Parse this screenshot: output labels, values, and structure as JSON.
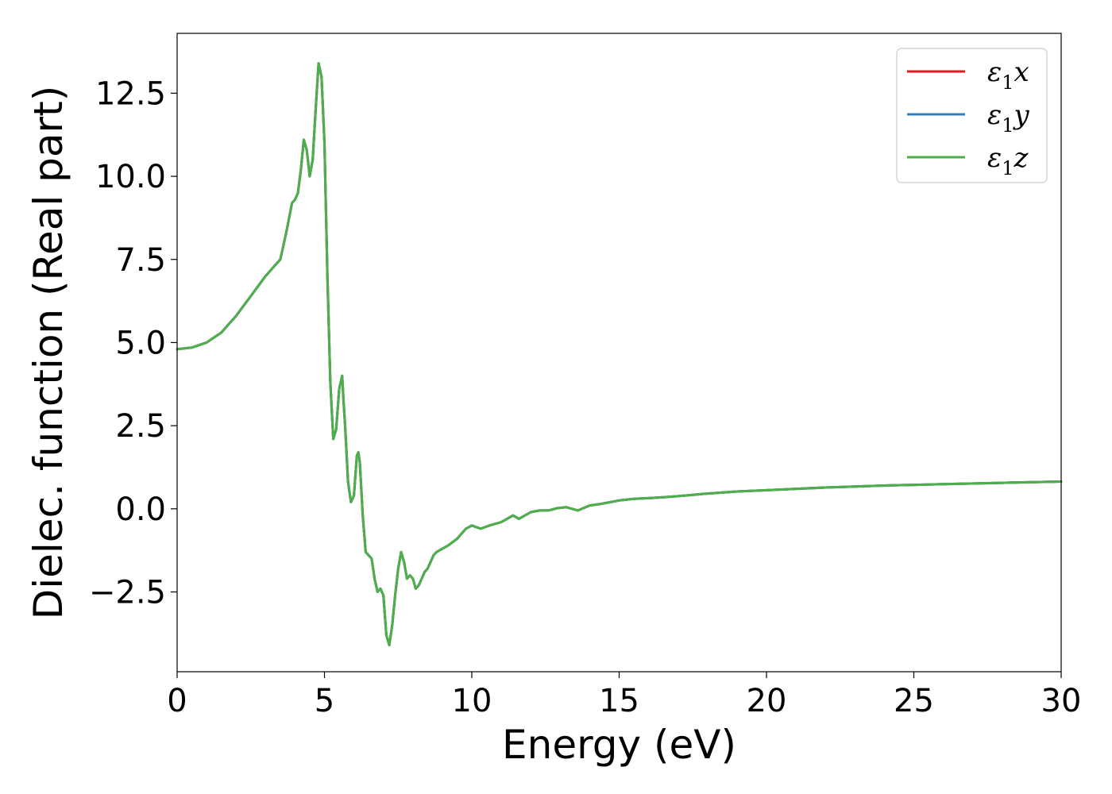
{
  "chart_data": {
    "type": "line",
    "xlabel": "Energy (eV)",
    "ylabel": "Dielec. function (Real part)",
    "xlim": [
      0,
      30
    ],
    "ylim": [
      -4.9,
      14.3
    ],
    "x_ticks": [
      0,
      5,
      10,
      15,
      20,
      25,
      30
    ],
    "x_tick_labels": [
      "0",
      "5",
      "10",
      "15",
      "20",
      "25",
      "30"
    ],
    "y_ticks": [
      -2.5,
      0.0,
      2.5,
      5.0,
      7.5,
      10.0,
      12.5
    ],
    "y_tick_labels": [
      "−2.5",
      "0.0",
      "2.5",
      "5.0",
      "7.5",
      "10.0",
      "12.5"
    ],
    "grid": false,
    "legend_position": "top-right",
    "series": [
      {
        "name": "ε₁x",
        "legend_symbol": "ε",
        "legend_subscript": "1",
        "legend_suffix": "x",
        "color": "#e41a1c",
        "x": [
          0,
          0.5,
          1,
          1.5,
          2,
          2.5,
          3,
          3.3,
          3.5,
          3.7,
          3.9,
          4.0,
          4.1,
          4.2,
          4.3,
          4.4,
          4.5,
          4.6,
          4.7,
          4.8,
          4.9,
          5.0,
          5.1,
          5.2,
          5.3,
          5.4,
          5.5,
          5.6,
          5.65,
          5.7,
          5.8,
          5.9,
          6.0,
          6.1,
          6.15,
          6.2,
          6.3,
          6.4,
          6.5,
          6.6,
          6.7,
          6.8,
          6.9,
          7.0,
          7.1,
          7.2,
          7.3,
          7.4,
          7.5,
          7.6,
          7.7,
          7.8,
          7.9,
          8.0,
          8.1,
          8.2,
          8.3,
          8.4,
          8.5,
          8.6,
          8.7,
          8.8,
          9.0,
          9.2,
          9.5,
          9.8,
          10.0,
          10.3,
          10.6,
          11.0,
          11.4,
          11.6,
          12.0,
          12.3,
          12.6,
          12.9,
          13.2,
          13.6,
          14.0,
          14.4,
          14.7,
          15.0,
          15.5,
          16.0,
          16.5,
          17.0,
          17.5,
          18.0,
          19.0,
          20.0,
          22.0,
          24.0,
          26.0,
          28.0,
          30.0
        ],
        "y": [
          4.8,
          4.85,
          5.0,
          5.3,
          5.8,
          6.4,
          7.0,
          7.3,
          7.5,
          8.3,
          9.2,
          9.3,
          9.5,
          10.2,
          11.1,
          10.8,
          10.0,
          10.5,
          12.0,
          13.4,
          13.0,
          11.0,
          7.0,
          3.8,
          2.1,
          2.4,
          3.6,
          4.0,
          3.2,
          2.5,
          0.8,
          0.2,
          0.4,
          1.6,
          1.7,
          1.4,
          -0.2,
          -1.3,
          -1.4,
          -1.5,
          -2.1,
          -2.5,
          -2.4,
          -2.6,
          -3.8,
          -4.1,
          -3.5,
          -2.6,
          -1.8,
          -1.3,
          -1.6,
          -2.1,
          -2.0,
          -2.1,
          -2.4,
          -2.3,
          -2.1,
          -1.9,
          -1.8,
          -1.6,
          -1.4,
          -1.3,
          -1.2,
          -1.1,
          -0.9,
          -0.6,
          -0.5,
          -0.6,
          -0.5,
          -0.4,
          -0.2,
          -0.3,
          -0.1,
          -0.05,
          -0.05,
          0.02,
          0.05,
          -0.05,
          0.1,
          0.15,
          0.2,
          0.25,
          0.3,
          0.32,
          0.35,
          0.38,
          0.42,
          0.46,
          0.52,
          0.56,
          0.64,
          0.7,
          0.74,
          0.78,
          0.82
        ]
      },
      {
        "name": "ε₁y",
        "legend_symbol": "ε",
        "legend_subscript": "1",
        "legend_suffix": "y",
        "color": "#377eb8",
        "x": [
          0,
          0.5,
          1,
          1.5,
          2,
          2.5,
          3,
          3.3,
          3.5,
          3.7,
          3.9,
          4.0,
          4.1,
          4.2,
          4.3,
          4.4,
          4.5,
          4.6,
          4.7,
          4.8,
          4.9,
          5.0,
          5.1,
          5.2,
          5.3,
          5.4,
          5.5,
          5.6,
          5.65,
          5.7,
          5.8,
          5.9,
          6.0,
          6.1,
          6.15,
          6.2,
          6.3,
          6.4,
          6.5,
          6.6,
          6.7,
          6.8,
          6.9,
          7.0,
          7.1,
          7.2,
          7.3,
          7.4,
          7.5,
          7.6,
          7.7,
          7.8,
          7.9,
          8.0,
          8.1,
          8.2,
          8.3,
          8.4,
          8.5,
          8.6,
          8.7,
          8.8,
          9.0,
          9.2,
          9.5,
          9.8,
          10.0,
          10.3,
          10.6,
          11.0,
          11.4,
          11.6,
          12.0,
          12.3,
          12.6,
          12.9,
          13.2,
          13.6,
          14.0,
          14.4,
          14.7,
          15.0,
          15.5,
          16.0,
          16.5,
          17.0,
          17.5,
          18.0,
          19.0,
          20.0,
          22.0,
          24.0,
          26.0,
          28.0,
          30.0
        ],
        "y": [
          4.8,
          4.85,
          5.0,
          5.3,
          5.8,
          6.4,
          7.0,
          7.3,
          7.5,
          8.3,
          9.2,
          9.3,
          9.5,
          10.2,
          11.1,
          10.8,
          10.0,
          10.5,
          12.0,
          13.4,
          13.0,
          11.0,
          7.0,
          3.8,
          2.1,
          2.4,
          3.6,
          4.0,
          3.2,
          2.5,
          0.8,
          0.2,
          0.4,
          1.6,
          1.7,
          1.4,
          -0.2,
          -1.3,
          -1.4,
          -1.5,
          -2.1,
          -2.5,
          -2.4,
          -2.6,
          -3.8,
          -4.1,
          -3.5,
          -2.6,
          -1.8,
          -1.3,
          -1.6,
          -2.1,
          -2.0,
          -2.1,
          -2.4,
          -2.3,
          -2.1,
          -1.9,
          -1.8,
          -1.6,
          -1.4,
          -1.3,
          -1.2,
          -1.1,
          -0.9,
          -0.6,
          -0.5,
          -0.6,
          -0.5,
          -0.4,
          -0.2,
          -0.3,
          -0.1,
          -0.05,
          -0.05,
          0.02,
          0.05,
          -0.05,
          0.1,
          0.15,
          0.2,
          0.25,
          0.3,
          0.32,
          0.35,
          0.38,
          0.42,
          0.46,
          0.52,
          0.56,
          0.64,
          0.7,
          0.74,
          0.78,
          0.82
        ]
      },
      {
        "name": "ε₁z",
        "legend_symbol": "ε",
        "legend_subscript": "1",
        "legend_suffix": "z",
        "color": "#4daf4a",
        "x": [
          0,
          0.5,
          1,
          1.5,
          2,
          2.5,
          3,
          3.3,
          3.5,
          3.7,
          3.9,
          4.0,
          4.1,
          4.2,
          4.3,
          4.4,
          4.5,
          4.6,
          4.7,
          4.8,
          4.9,
          5.0,
          5.1,
          5.2,
          5.3,
          5.4,
          5.5,
          5.6,
          5.65,
          5.7,
          5.8,
          5.9,
          6.0,
          6.1,
          6.15,
          6.2,
          6.3,
          6.4,
          6.5,
          6.6,
          6.7,
          6.8,
          6.9,
          7.0,
          7.1,
          7.2,
          7.3,
          7.4,
          7.5,
          7.6,
          7.7,
          7.8,
          7.9,
          8.0,
          8.1,
          8.2,
          8.3,
          8.4,
          8.5,
          8.6,
          8.7,
          8.8,
          9.0,
          9.2,
          9.5,
          9.8,
          10.0,
          10.3,
          10.6,
          11.0,
          11.4,
          11.6,
          12.0,
          12.3,
          12.6,
          12.9,
          13.2,
          13.6,
          14.0,
          14.4,
          14.7,
          15.0,
          15.5,
          16.0,
          16.5,
          17.0,
          17.5,
          18.0,
          19.0,
          20.0,
          22.0,
          24.0,
          26.0,
          28.0,
          30.0
        ],
        "y": [
          4.8,
          4.85,
          5.0,
          5.3,
          5.8,
          6.4,
          7.0,
          7.3,
          7.5,
          8.3,
          9.2,
          9.3,
          9.5,
          10.2,
          11.1,
          10.8,
          10.0,
          10.5,
          12.0,
          13.4,
          13.0,
          11.0,
          7.0,
          3.8,
          2.1,
          2.4,
          3.6,
          4.0,
          3.2,
          2.5,
          0.8,
          0.2,
          0.4,
          1.6,
          1.7,
          1.4,
          -0.2,
          -1.3,
          -1.4,
          -1.5,
          -2.1,
          -2.5,
          -2.4,
          -2.6,
          -3.8,
          -4.1,
          -3.5,
          -2.6,
          -1.8,
          -1.3,
          -1.6,
          -2.1,
          -2.0,
          -2.1,
          -2.4,
          -2.3,
          -2.1,
          -1.9,
          -1.8,
          -1.6,
          -1.4,
          -1.3,
          -1.2,
          -1.1,
          -0.9,
          -0.6,
          -0.5,
          -0.6,
          -0.5,
          -0.4,
          -0.2,
          -0.3,
          -0.1,
          -0.05,
          -0.05,
          0.02,
          0.05,
          -0.05,
          0.1,
          0.15,
          0.2,
          0.25,
          0.3,
          0.32,
          0.35,
          0.38,
          0.42,
          0.46,
          0.52,
          0.56,
          0.64,
          0.7,
          0.74,
          0.78,
          0.82
        ]
      }
    ]
  }
}
